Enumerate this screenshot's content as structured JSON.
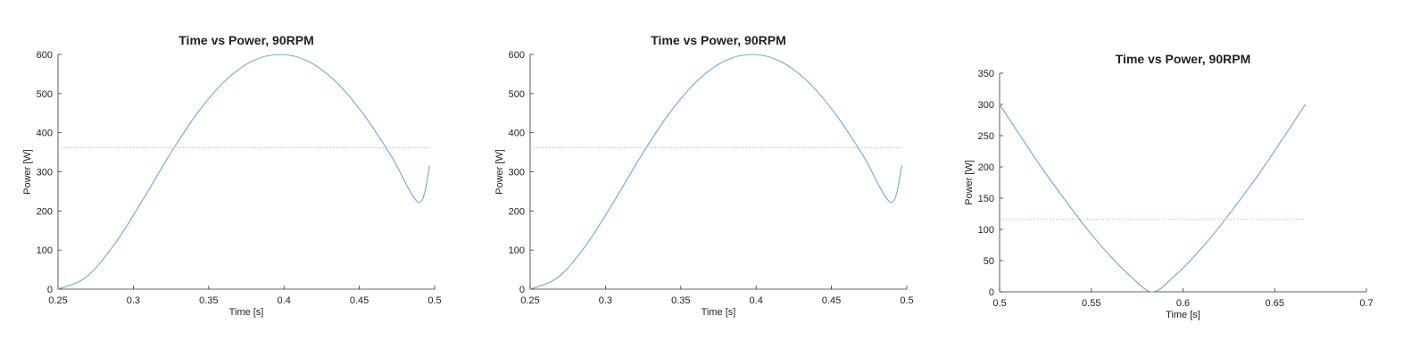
{
  "colors": {
    "series": "#6fa8dc",
    "mean_line": "#f4a3a8",
    "axis": "#333333"
  },
  "chart_data": [
    {
      "type": "line",
      "title": "Time vs Power, 90RPM",
      "xlabel": "Time [s]",
      "ylabel": "Power [W]",
      "xlim": [
        0.25,
        0.5
      ],
      "ylim": [
        0,
        600
      ],
      "xticks": [
        0.25,
        0.3,
        0.35,
        0.4,
        0.45,
        0.5
      ],
      "xtick_labels": [
        "0.25",
        "0.3",
        "0.35",
        "0.4",
        "0.45",
        "0.5"
      ],
      "yticks": [
        0,
        100,
        200,
        300,
        400,
        500,
        600
      ],
      "ytick_labels": [
        "0",
        "100",
        "200",
        "300",
        "400",
        "500",
        "600"
      ],
      "grid": false,
      "series": [
        {
          "style": "solid",
          "x": [
            0.25,
            0.2684,
            0.2868,
            0.3053,
            0.3237,
            0.3421,
            0.3605,
            0.3789,
            0.3974,
            0.4158,
            0.4342,
            0.4526,
            0.4711,
            0.4895,
            0.4967
          ],
          "y": [
            0,
            30,
            111,
            222,
            341,
            448,
            531,
            583,
            600,
            583,
            531,
            448,
            341,
            222,
            316
          ]
        },
        {
          "style": "dotted",
          "x": [
            0.25,
            0.4967
          ],
          "y": [
            362,
            362
          ]
        }
      ]
    },
    {
      "type": "line",
      "title": "Time vs Power, 90RPM",
      "xlabel": "Time [s]",
      "ylabel": "Power [W]",
      "xlim": [
        0.25,
        0.5
      ],
      "ylim": [
        0,
        600
      ],
      "xticks": [
        0.25,
        0.3,
        0.35,
        0.4,
        0.45,
        0.5
      ],
      "xtick_labels": [
        "0.25",
        "0.3",
        "0.35",
        "0.4",
        "0.45",
        "0.5"
      ],
      "yticks": [
        0,
        100,
        200,
        300,
        400,
        500,
        600
      ],
      "ytick_labels": [
        "0",
        "100",
        "200",
        "300",
        "400",
        "500",
        "600"
      ],
      "grid": false,
      "series": [
        {
          "style": "solid",
          "x": [
            0.25,
            0.2684,
            0.2868,
            0.3053,
            0.3237,
            0.3421,
            0.3605,
            0.3789,
            0.3974,
            0.4158,
            0.4342,
            0.4526,
            0.4711,
            0.4895,
            0.4967
          ],
          "y": [
            0,
            30,
            111,
            222,
            341,
            448,
            531,
            583,
            600,
            583,
            531,
            448,
            341,
            222,
            316
          ]
        },
        {
          "style": "dotted",
          "x": [
            0.25,
            0.4967
          ],
          "y": [
            362,
            362
          ]
        }
      ]
    },
    {
      "type": "line",
      "title": "Time vs Power, 90RPM",
      "xlabel": "Time [s]",
      "ylabel": "Power [W]",
      "xlim": [
        0.5,
        0.7
      ],
      "ylim": [
        0,
        350
      ],
      "xticks": [
        0.5,
        0.55,
        0.6,
        0.65,
        0.7
      ],
      "xtick_labels": [
        "0.5",
        "0.55",
        "0.6",
        "0.65",
        "0.7"
      ],
      "yticks": [
        0,
        50,
        100,
        150,
        200,
        250,
        300,
        350
      ],
      "ytick_labels": [
        "0",
        "50",
        "100",
        "150",
        "200",
        "250",
        "300",
        "350"
      ],
      "grid": false,
      "series": [
        {
          "style": "solid",
          "x": [
            0.5,
            0.5119,
            0.5238,
            0.5357,
            0.5476,
            0.5595,
            0.5714,
            0.5833,
            0.5952,
            0.6071,
            0.619,
            0.631,
            0.6429,
            0.6548,
            0.6667
          ],
          "y": [
            300,
            247,
            195,
            147,
            101,
            60,
            25,
            0,
            25,
            60,
            101,
            147,
            195,
            247,
            300
          ]
        },
        {
          "style": "dotted",
          "x": [
            0.5,
            0.6667
          ],
          "y": [
            116,
            116
          ]
        }
      ]
    }
  ]
}
